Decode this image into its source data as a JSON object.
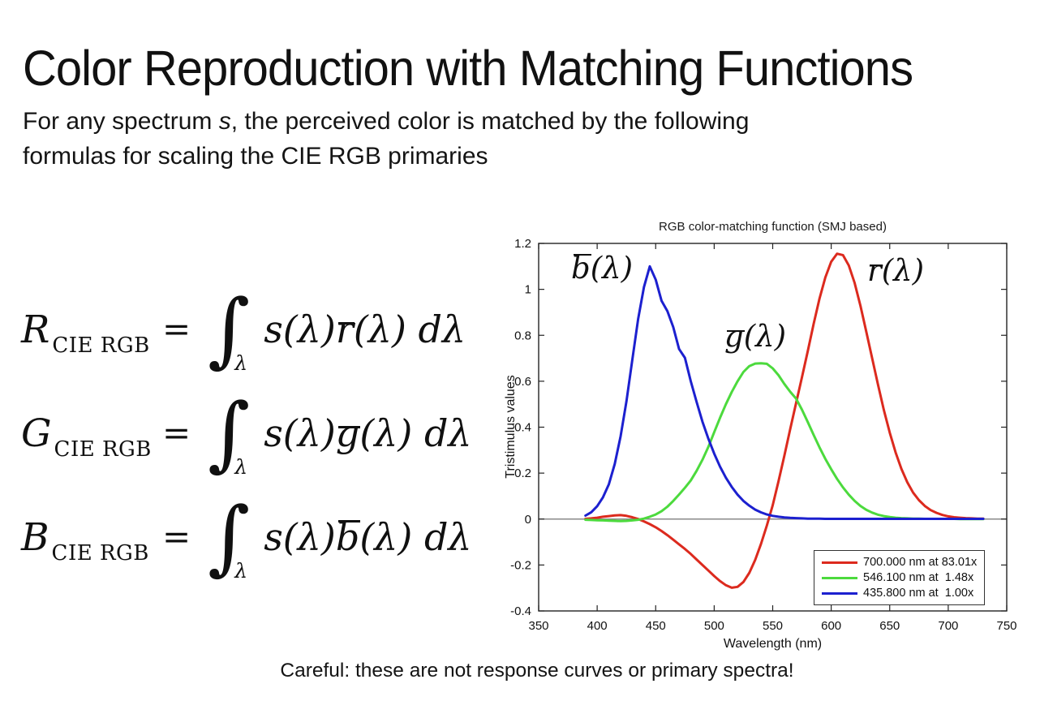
{
  "slide": {
    "title": "Color Reproduction with Matching Functions",
    "paragraph": {
      "pre": "For any spectrum ",
      "emph": "s",
      "post": ", the perceived color is matched by the following\nformulas for scaling the CIE RGB primaries"
    },
    "caption": "Careful: these are not response curves or primary spectra!"
  },
  "formulas": [
    {
      "lhs": "R",
      "lhs_sub": "CIE RGB",
      "eq": "=",
      "integral": "∫",
      "int_sub": "λ",
      "pre": "s(λ)",
      "bar_letter": "r",
      "post": "(λ) dλ"
    },
    {
      "lhs": "G",
      "lhs_sub": "CIE RGB",
      "eq": "=",
      "integral": "∫",
      "int_sub": "λ",
      "pre": "s(λ)",
      "bar_letter": "g",
      "post": "(λ) dλ"
    },
    {
      "lhs": "B",
      "lhs_sub": "CIE RGB",
      "eq": "=",
      "integral": "∫",
      "int_sub": "λ",
      "pre": "s(λ)",
      "bar_letter": "b",
      "post": "(λ) dλ"
    }
  ],
  "chart_data": {
    "type": "line",
    "title": "RGB color-matching function (SMJ based)",
    "xlabel": "Wavelength (nm)",
    "ylabel": "Tristimulus values",
    "xlim": [
      350,
      750
    ],
    "ylim": [
      -0.4,
      1.2
    ],
    "xticks": [
      "350",
      "400",
      "450",
      "500",
      "550",
      "600",
      "650",
      "700",
      "750"
    ],
    "yticks": [
      "-0.4",
      "-0.2",
      "0",
      "0.2",
      "0.4",
      "0.6",
      "0.8",
      "1",
      "1.2"
    ],
    "grid": false,
    "zero_line": true,
    "legend_position": "lower right",
    "x_start": 390,
    "x_step": 5,
    "series": [
      {
        "name": "r-bar",
        "label_letter": "r",
        "label_arg": "(λ)",
        "color": "#dc2a1e",
        "legend": "700.000 nm at 83.01x",
        "peak": {
          "x": 605,
          "y": 1.155
        },
        "values": [
          0.001,
          0.003,
          0.006,
          0.01,
          0.013,
          0.016,
          0.017,
          0.014,
          0.008,
          0.0,
          -0.01,
          -0.022,
          -0.036,
          -0.052,
          -0.07,
          -0.09,
          -0.11,
          -0.13,
          -0.152,
          -0.176,
          -0.2,
          -0.224,
          -0.248,
          -0.27,
          -0.288,
          -0.299,
          -0.295,
          -0.274,
          -0.234,
          -0.178,
          -0.108,
          -0.028,
          0.06,
          0.165,
          0.276,
          0.392,
          0.506,
          0.618,
          0.732,
          0.85,
          0.96,
          1.052,
          1.12,
          1.155,
          1.149,
          1.104,
          1.028,
          0.928,
          0.815,
          0.7,
          0.585,
          0.475,
          0.376,
          0.29,
          0.218,
          0.16,
          0.115,
          0.082,
          0.057,
          0.039,
          0.027,
          0.018,
          0.012,
          0.008,
          0.006,
          0.004,
          0.003,
          0.002,
          0.002
        ]
      },
      {
        "name": "g-bar",
        "label_letter": "g",
        "label_arg": "(λ)",
        "color": "#4cda3d",
        "legend": "546.100 nm at  1.48x",
        "peak": {
          "x": 540,
          "y": 0.678
        },
        "values": [
          -0.003,
          -0.004,
          -0.005,
          -0.006,
          -0.007,
          -0.008,
          -0.009,
          -0.008,
          -0.006,
          -0.003,
          0.002,
          0.01,
          0.02,
          0.034,
          0.054,
          0.079,
          0.107,
          0.136,
          0.168,
          0.21,
          0.258,
          0.314,
          0.378,
          0.441,
          0.5,
          0.553,
          0.6,
          0.64,
          0.666,
          0.677,
          0.678,
          0.676,
          0.656,
          0.626,
          0.588,
          0.554,
          0.524,
          0.476,
          0.422,
          0.366,
          0.312,
          0.262,
          0.217,
          0.175,
          0.138,
          0.106,
          0.079,
          0.057,
          0.04,
          0.028,
          0.019,
          0.013,
          0.009,
          0.006,
          0.004,
          0.003,
          0.002,
          0.002,
          0.001,
          0.001,
          0.001,
          0.001,
          0.001,
          0.001,
          0.0,
          0.0,
          0.0,
          0.0,
          0.0
        ]
      },
      {
        "name": "b-bar",
        "label_letter": "b",
        "label_arg": "(λ)",
        "color": "#1c20cf",
        "legend": "435.800 nm at  1.00x",
        "peak": {
          "x": 445,
          "y": 1.1
        },
        "values": [
          0.015,
          0.03,
          0.056,
          0.095,
          0.152,
          0.24,
          0.36,
          0.512,
          0.692,
          0.87,
          1.01,
          1.1,
          1.042,
          0.95,
          0.905,
          0.836,
          0.74,
          0.702,
          0.6,
          0.51,
          0.424,
          0.35,
          0.285,
          0.228,
          0.18,
          0.14,
          0.106,
          0.079,
          0.058,
          0.041,
          0.029,
          0.02,
          0.014,
          0.01,
          0.007,
          0.005,
          0.004,
          0.003,
          0.002,
          0.002,
          0.002,
          0.001,
          0.001,
          0.001,
          0.001,
          0.001,
          0.001,
          0.001,
          0.001,
          0.001,
          0.001,
          0.001,
          0.001,
          0.001,
          0.001,
          0.001,
          0.001,
          0.001,
          0.001,
          0.001,
          0.001,
          0.001,
          0.001,
          0.001,
          0.001,
          0.001,
          0.001,
          0.001,
          0.001
        ]
      }
    ]
  }
}
